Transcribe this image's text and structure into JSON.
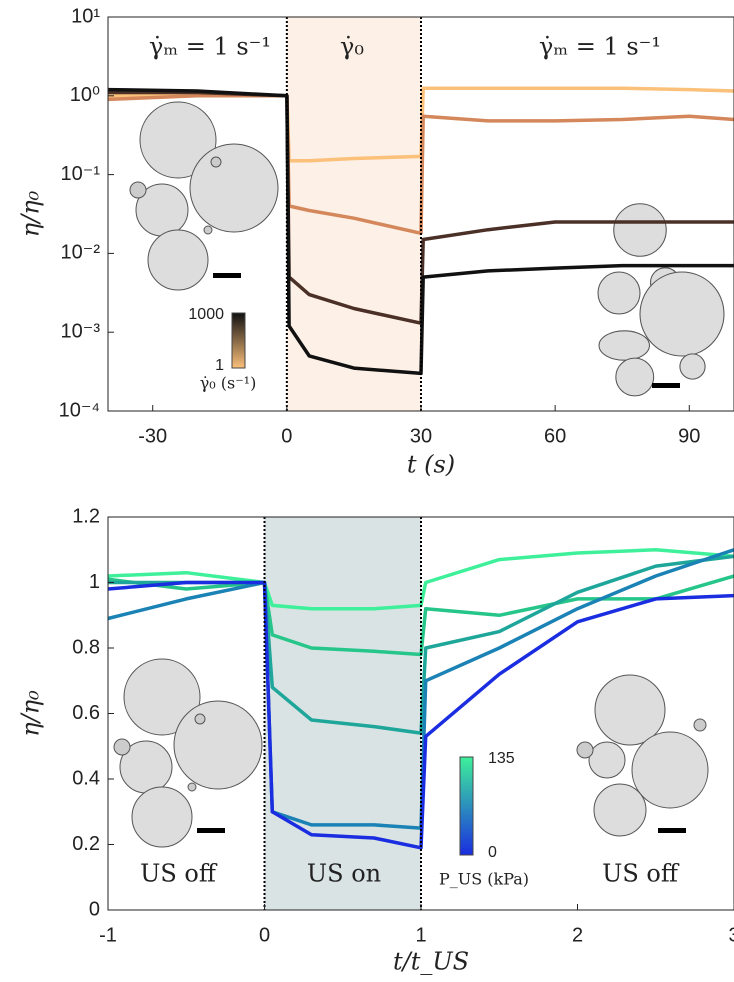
{
  "chart_data": [
    {
      "type": "line",
      "log_y": true,
      "x_label": "t (s)",
      "y_label": "η/η₀",
      "xlim": [
        -40,
        100
      ],
      "xticks": [
        -30,
        0,
        30,
        60,
        90
      ],
      "ylim": [
        0.0001,
        10
      ],
      "yticks": [
        {
          "value": 0.0001,
          "label": "10⁻⁴"
        },
        {
          "value": 0.001,
          "label": "10⁻³"
        },
        {
          "value": 0.01,
          "label": "10⁻²"
        },
        {
          "value": 0.1,
          "label": "10⁻¹"
        },
        {
          "value": 1,
          "label": "10⁰"
        },
        {
          "value": 10,
          "label": "10¹"
        }
      ],
      "shaded_region": [
        0,
        30
      ],
      "shade_color": "#fdf0e6",
      "x": [
        -40,
        -20,
        0,
        0.5,
        5,
        15,
        30,
        30.5,
        45,
        60,
        75,
        90,
        100
      ],
      "series": [
        {
          "color": "#fbc07a",
          "values": [
            1.0,
            1.0,
            1.0,
            0.15,
            0.15,
            0.16,
            0.17,
            1.25,
            1.25,
            1.25,
            1.25,
            1.2,
            1.15
          ]
        },
        {
          "color": "#d4875a",
          "values": [
            0.9,
            1.0,
            1.0,
            0.04,
            0.035,
            0.028,
            0.018,
            0.55,
            0.48,
            0.48,
            0.5,
            0.55,
            0.5
          ]
        },
        {
          "color": "#4a3026",
          "values": [
            1.1,
            1.1,
            1.0,
            0.005,
            0.003,
            0.002,
            0.0013,
            0.015,
            0.02,
            0.025,
            0.025,
            0.025,
            0.025
          ]
        },
        {
          "color": "#111111",
          "values": [
            1.2,
            1.15,
            1.0,
            0.0012,
            0.0005,
            0.00035,
            0.0003,
            0.005,
            0.006,
            0.0065,
            0.007,
            0.007,
            0.007
          ]
        }
      ],
      "annotations": [
        "γ̇ₘ = 1 s⁻¹",
        "γ̇₀",
        "γ̇ₘ = 1 s⁻¹"
      ],
      "colorbar": {
        "max_label": "1000",
        "min_label": "1",
        "label": "γ̇₀ (s⁻¹)",
        "colors": [
          "#fbc07a",
          "#111111"
        ]
      }
    },
    {
      "type": "line",
      "log_y": false,
      "x_label": "t/t_US",
      "y_label": "η/η₀",
      "xlim": [
        -1,
        3
      ],
      "xticks": [
        -1,
        0,
        1,
        2,
        3
      ],
      "ylim": [
        0,
        1.2
      ],
      "yticks": [
        0,
        0.2,
        0.4,
        0.6,
        0.8,
        1,
        1.2
      ],
      "shaded_region": [
        0,
        1
      ],
      "shade_color": "#d9e3e3",
      "x": [
        -1,
        -0.5,
        0,
        0.05,
        0.3,
        0.7,
        1,
        1.03,
        1.5,
        2,
        2.5,
        3
      ],
      "series": [
        {
          "color": "#3ef09a",
          "values": [
            1.02,
            1.03,
            1.0,
            0.93,
            0.92,
            0.92,
            0.93,
            1.0,
            1.07,
            1.09,
            1.1,
            1.08
          ]
        },
        {
          "color": "#26c58a",
          "values": [
            1.01,
            0.98,
            1.0,
            0.84,
            0.8,
            0.79,
            0.78,
            0.92,
            0.9,
            0.95,
            0.95,
            1.02
          ]
        },
        {
          "color": "#1fa69a",
          "values": [
            1.0,
            1.0,
            1.0,
            0.68,
            0.58,
            0.56,
            0.54,
            0.8,
            0.85,
            0.97,
            1.05,
            1.08
          ]
        },
        {
          "color": "#1a82b5",
          "values": [
            0.89,
            0.95,
            1.0,
            0.3,
            0.26,
            0.26,
            0.25,
            0.7,
            0.8,
            0.92,
            1.02,
            1.1
          ]
        },
        {
          "color": "#1a2de0",
          "values": [
            0.98,
            1.0,
            1.0,
            0.3,
            0.23,
            0.22,
            0.19,
            0.53,
            0.72,
            0.88,
            0.95,
            0.96
          ]
        }
      ],
      "annotations": [
        "US off",
        "US on",
        "US off"
      ],
      "colorbar": {
        "max_label": "135",
        "min_label": "0",
        "label": "P_US (kPa)",
        "colors": [
          "#1a2de0",
          "#3ef09a"
        ]
      }
    }
  ]
}
